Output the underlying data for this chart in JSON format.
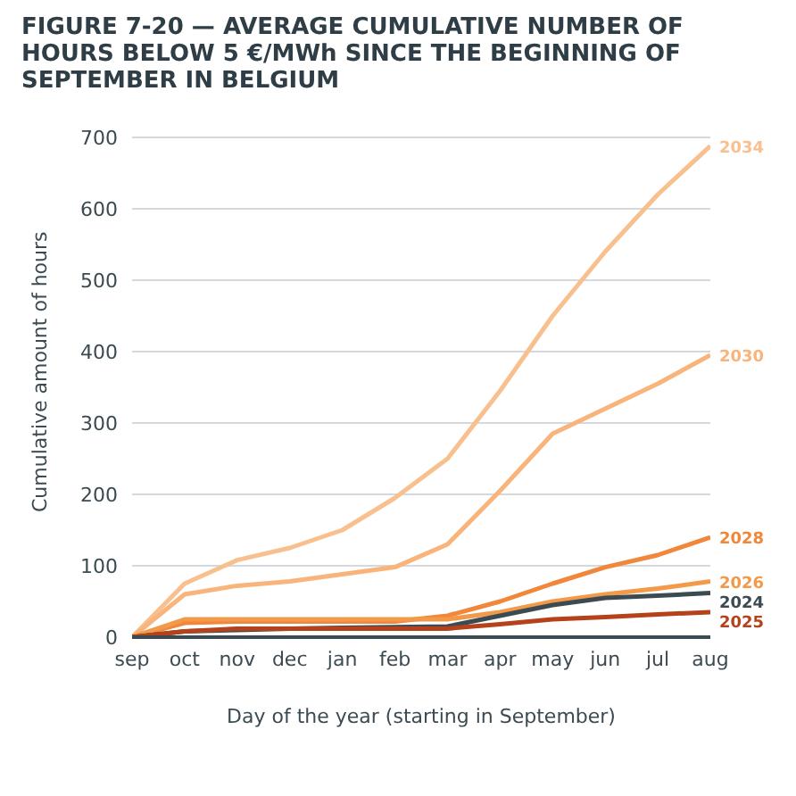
{
  "chart_data": {
    "type": "line",
    "title": "FIGURE 7-20 — AVERAGE CUMULATIVE NUMBER OF HOURS BELOW 5 €/MWh SINCE THE BEGINNING OF SEPTEMBER IN BELGIUM",
    "xlabel": "Day of the year (starting in September)",
    "ylabel": "Cumulative amount of hours",
    "categories": [
      "sep",
      "oct",
      "nov",
      "dec",
      "jan",
      "feb",
      "mar",
      "apr",
      "may",
      "jun",
      "jul",
      "aug"
    ],
    "ylim": [
      0,
      700
    ],
    "yticks": [
      0,
      100,
      200,
      300,
      400,
      500,
      600,
      700
    ],
    "grid": "y",
    "legend": false,
    "marker": "none",
    "series": [
      {
        "name": "2034",
        "color": "#f9c08f",
        "values": [
          0,
          75,
          108,
          125,
          150,
          195,
          250,
          345,
          450,
          540,
          620,
          688
        ]
      },
      {
        "name": "2030",
        "color": "#f8b47a",
        "values": [
          0,
          60,
          72,
          78,
          88,
          98,
          130,
          205,
          285,
          320,
          355,
          395
        ]
      },
      {
        "name": "2028",
        "color": "#f0873a",
        "values": [
          0,
          20,
          22,
          22,
          22,
          22,
          30,
          50,
          75,
          98,
          115,
          140
        ]
      },
      {
        "name": "2026",
        "color": "#f39a4a",
        "values": [
          0,
          25,
          25,
          25,
          25,
          25,
          25,
          35,
          50,
          60,
          68,
          78
        ]
      },
      {
        "name": "2024",
        "color": "#3c4a52",
        "values": [
          0,
          8,
          10,
          12,
          13,
          14,
          15,
          30,
          45,
          55,
          58,
          62
        ]
      },
      {
        "name": "2025",
        "color": "#b5421b",
        "values": [
          0,
          8,
          12,
          12,
          12,
          12,
          12,
          18,
          25,
          28,
          32,
          35
        ]
      }
    ]
  }
}
